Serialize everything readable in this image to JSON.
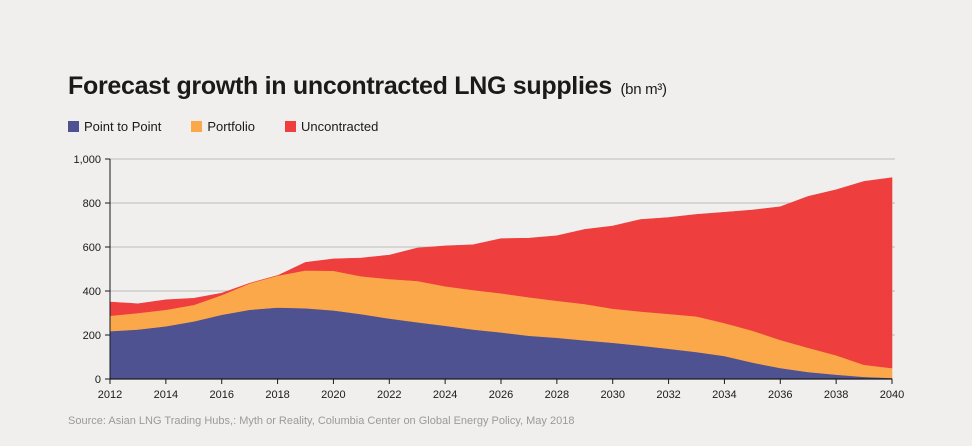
{
  "colors": {
    "point_to_point": "#4f5290",
    "portfolio": "#fba84a",
    "uncontracted": "#ee3e3d",
    "gridline": "#bdbdbd",
    "background": "#f0efed"
  },
  "chart_data": {
    "type": "area",
    "stacked": true,
    "title": "Forecast growth in uncontracted LNG supplies",
    "unit": "(bn m³)",
    "source": "Source: Asian LNG Trading Hubs,: Myth or Reality, Columbia Center on Global Energy Policy, May 2018",
    "legend_position": "top-left",
    "grid": true,
    "x": [
      2012,
      2013,
      2014,
      2015,
      2016,
      2017,
      2018,
      2019,
      2020,
      2021,
      2022,
      2023,
      2024,
      2025,
      2026,
      2027,
      2028,
      2029,
      2030,
      2031,
      2032,
      2033,
      2034,
      2035,
      2036,
      2037,
      2038,
      2039,
      2040
    ],
    "xlim": [
      2012,
      2040
    ],
    "ylim": [
      0,
      1000
    ],
    "x_ticks": [
      "2012",
      "2014",
      "2016",
      "2018",
      "2020",
      "2022",
      "2024",
      "2026",
      "2028",
      "2030",
      "2032",
      "2034",
      "2036",
      "2038",
      "2040"
    ],
    "y_ticks": [
      "0",
      "200",
      "400",
      "600",
      "800",
      "1,000"
    ],
    "series": [
      {
        "name": "Point to Point",
        "values": [
          218,
          225,
          240,
          262,
          292,
          315,
          325,
          322,
          312,
          295,
          275,
          258,
          242,
          225,
          212,
          197,
          188,
          176,
          165,
          152,
          138,
          123,
          105,
          75,
          50,
          32,
          20,
          10,
          5
        ]
      },
      {
        "name": "Portfolio",
        "values": [
          70,
          75,
          75,
          75,
          90,
          120,
          145,
          172,
          180,
          172,
          180,
          188,
          180,
          180,
          178,
          175,
          168,
          165,
          155,
          155,
          158,
          162,
          150,
          145,
          128,
          110,
          88,
          55,
          45
        ]
      },
      {
        "name": "Uncontracted",
        "values": [
          62,
          42,
          45,
          30,
          8,
          0,
          0,
          36,
          54,
          83,
          108,
          149,
          183,
          205,
          248,
          268,
          295,
          339,
          375,
          418,
          438,
          463,
          503,
          548,
          605,
          688,
          752,
          833,
          865
        ]
      }
    ]
  }
}
